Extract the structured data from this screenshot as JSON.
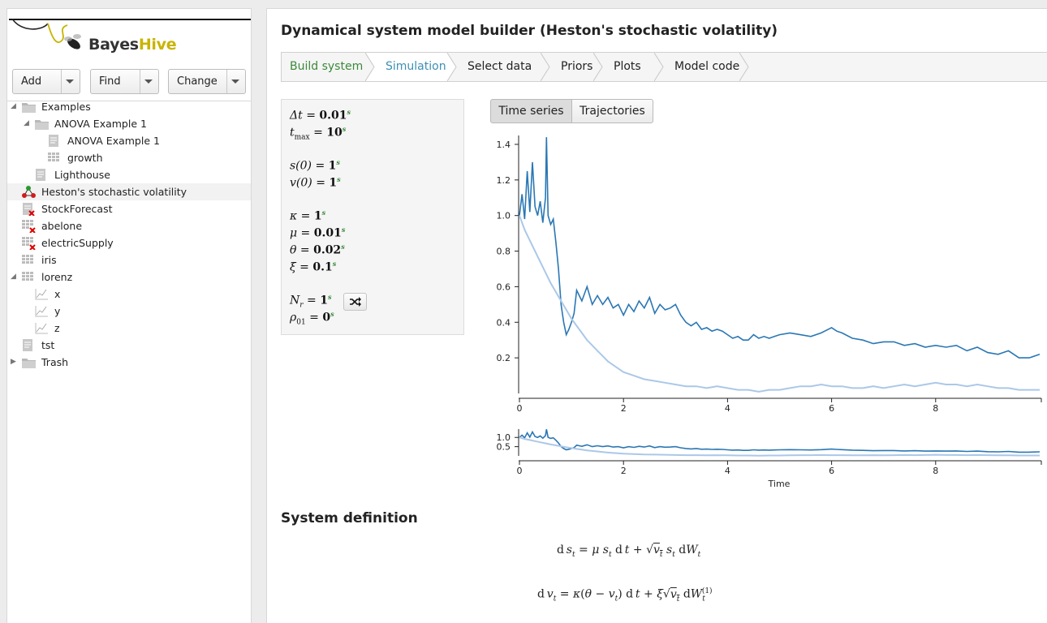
{
  "app": {
    "brand_part1": "Bayes",
    "brand_part2": "Hive"
  },
  "toolbar": {
    "add_label": "Add",
    "find_label": "Find",
    "change_label": "Change"
  },
  "tree": [
    {
      "label": "Examples",
      "icon": "folder-icon",
      "level": 0,
      "expanded": true
    },
    {
      "label": "ANOVA Example 1",
      "icon": "folder-icon",
      "level": 1,
      "expanded": true
    },
    {
      "label": "ANOVA Example 1",
      "icon": "document-icon",
      "level": 2
    },
    {
      "label": "growth",
      "icon": "table-icon",
      "level": 2
    },
    {
      "label": "Lighthouse",
      "icon": "document-icon",
      "level": 1
    },
    {
      "label": "Heston's stochastic volatility",
      "icon": "model-graph-icon",
      "level": 0,
      "selected": true
    },
    {
      "label": "StockForecast",
      "icon": "document-error-icon",
      "level": 0
    },
    {
      "label": "abelone",
      "icon": "table-error-icon",
      "level": 0
    },
    {
      "label": "electricSupply",
      "icon": "table-error-icon",
      "level": 0
    },
    {
      "label": "iris",
      "icon": "table-icon",
      "level": 0
    },
    {
      "label": "lorenz",
      "icon": "table-icon",
      "level": 0,
      "expanded": true
    },
    {
      "label": "x",
      "icon": "line-chart-icon",
      "level": 1
    },
    {
      "label": "y",
      "icon": "line-chart-icon",
      "level": 1
    },
    {
      "label": "z",
      "icon": "line-chart-icon",
      "level": 1
    },
    {
      "label": "tst",
      "icon": "document-icon",
      "level": 0
    },
    {
      "label": "Trash",
      "icon": "folder-icon",
      "level": 0,
      "expanded": false
    }
  ],
  "main": {
    "title": "Dynamical system model builder (Heston's stochastic volatility)",
    "steps": [
      "Build system",
      "Simulation",
      "Select data",
      "Priors",
      "Plots",
      "Model code"
    ],
    "active_step": 1,
    "params": {
      "dt_sym": "Δt",
      "dt_val": "0.01",
      "tmax_sym": "t",
      "tmax_sub": "max",
      "tmax_val": "10",
      "s0_sym": "s(0)",
      "s0_val": "1",
      "v0_sym": "v(0)",
      "v0_val": "1",
      "kappa_sym": "κ",
      "kappa_val": "1",
      "mu_sym": "μ",
      "mu_val": "0.01",
      "theta_sym": "θ",
      "theta_val": "0.02",
      "xi_sym": "ξ",
      "xi_val": "0.1",
      "nr_sym": "N",
      "nr_sub": "r",
      "nr_val": "1",
      "rho_sym": "ρ",
      "rho_sub": "01",
      "rho_val": "0",
      "s_marker": "s",
      "eq": " = "
    },
    "view_toggle": {
      "time_series": "Time series",
      "trajectories": "Trajectories",
      "selected": "Time series"
    },
    "sysdef": {
      "title": "System definition",
      "eq1": "d s_t = μ s_t d t + √v_t s_t d W_t",
      "eq2": "d v_t = κ(θ − v_t) d t + ξ √v_t d W_t^(1)"
    }
  },
  "chart_data": [
    {
      "type": "line",
      "name": "main-time-series",
      "xlim": [
        0,
        10
      ],
      "ylim": [
        0,
        1.45
      ],
      "x_ticks": [
        0,
        2,
        4,
        6,
        8
      ],
      "y_ticks": [
        0.2,
        0.4,
        0.6,
        0.8,
        1.0,
        1.2,
        1.4
      ],
      "x_tick_labels": [
        "0",
        "2",
        "4",
        "6",
        "8"
      ],
      "y_tick_labels": [
        "0.2",
        "0.4",
        "0.6",
        "0.8",
        "1.0",
        "1.2",
        "1.4"
      ],
      "colors": [
        "#2a77b4",
        "#abc8e8"
      ],
      "series": [
        {
          "x": [
            0,
            0.05,
            0.1,
            0.15,
            0.2,
            0.25,
            0.3,
            0.35,
            0.4,
            0.45,
            0.5,
            0.52,
            0.55,
            0.6,
            0.65,
            0.7,
            0.75,
            0.8,
            0.85,
            0.9,
            0.95,
            1.0,
            1.05,
            1.1,
            1.15,
            1.2,
            1.3,
            1.4,
            1.5,
            1.6,
            1.7,
            1.8,
            1.9,
            2.0,
            2.1,
            2.2,
            2.3,
            2.4,
            2.5,
            2.6,
            2.7,
            2.8,
            2.9,
            3.0,
            3.1,
            3.2,
            3.3,
            3.4,
            3.5,
            3.6,
            3.7,
            3.8,
            3.9,
            4.0,
            4.1,
            4.2,
            4.3,
            4.4,
            4.5,
            4.6,
            4.7,
            4.8,
            4.9,
            5.0,
            5.2,
            5.4,
            5.6,
            5.8,
            6.0,
            6.1,
            6.2,
            6.4,
            6.6,
            6.8,
            7.0,
            7.2,
            7.4,
            7.6,
            7.8,
            8.0,
            8.2,
            8.4,
            8.6,
            8.8,
            9.0,
            9.2,
            9.4,
            9.6,
            9.8,
            10.0
          ],
          "y": [
            1.0,
            1.12,
            0.98,
            1.25,
            1.02,
            1.3,
            1.05,
            1.0,
            1.08,
            0.96,
            1.1,
            1.44,
            1.0,
            0.95,
            0.98,
            0.85,
            0.7,
            0.5,
            0.4,
            0.33,
            0.36,
            0.4,
            0.45,
            0.58,
            0.55,
            0.52,
            0.6,
            0.5,
            0.55,
            0.5,
            0.54,
            0.48,
            0.5,
            0.44,
            0.5,
            0.46,
            0.52,
            0.48,
            0.54,
            0.45,
            0.5,
            0.47,
            0.48,
            0.5,
            0.44,
            0.4,
            0.38,
            0.4,
            0.36,
            0.37,
            0.35,
            0.36,
            0.35,
            0.33,
            0.31,
            0.32,
            0.3,
            0.3,
            0.33,
            0.31,
            0.32,
            0.31,
            0.32,
            0.33,
            0.34,
            0.33,
            0.32,
            0.34,
            0.37,
            0.35,
            0.34,
            0.31,
            0.3,
            0.28,
            0.29,
            0.29,
            0.27,
            0.28,
            0.26,
            0.27,
            0.26,
            0.27,
            0.24,
            0.26,
            0.23,
            0.22,
            0.24,
            0.2,
            0.2,
            0.22
          ]
        },
        {
          "x": [
            0,
            0.1,
            0.2,
            0.3,
            0.4,
            0.5,
            0.6,
            0.7,
            0.8,
            0.9,
            1.0,
            1.1,
            1.2,
            1.3,
            1.4,
            1.5,
            1.6,
            1.7,
            1.8,
            1.9,
            2.0,
            2.2,
            2.4,
            2.6,
            2.8,
            3.0,
            3.2,
            3.4,
            3.6,
            3.8,
            4.0,
            4.2,
            4.4,
            4.6,
            4.8,
            5.0,
            5.2,
            5.4,
            5.6,
            5.8,
            6.0,
            6.2,
            6.4,
            6.6,
            6.8,
            7.0,
            7.2,
            7.4,
            7.6,
            7.8,
            8.0,
            8.2,
            8.4,
            8.6,
            8.8,
            9.0,
            9.2,
            9.4,
            9.6,
            9.8,
            10.0
          ],
          "y": [
            1.0,
            0.92,
            0.86,
            0.8,
            0.74,
            0.68,
            0.62,
            0.57,
            0.52,
            0.47,
            0.42,
            0.38,
            0.34,
            0.3,
            0.27,
            0.24,
            0.21,
            0.18,
            0.16,
            0.14,
            0.12,
            0.1,
            0.08,
            0.07,
            0.06,
            0.05,
            0.04,
            0.04,
            0.03,
            0.04,
            0.03,
            0.02,
            0.02,
            0.01,
            0.02,
            0.02,
            0.03,
            0.04,
            0.04,
            0.05,
            0.04,
            0.04,
            0.03,
            0.03,
            0.04,
            0.03,
            0.04,
            0.05,
            0.04,
            0.05,
            0.06,
            0.05,
            0.05,
            0.04,
            0.05,
            0.04,
            0.03,
            0.03,
            0.02,
            0.02,
            0.02
          ]
        }
      ]
    },
    {
      "type": "line",
      "name": "overview-time-series",
      "xlabel": "Time",
      "xlim": [
        0,
        10
      ],
      "ylim": [
        0,
        1.45
      ],
      "x_ticks": [
        0,
        2,
        4,
        6,
        8
      ],
      "y_ticks": [
        0.5,
        1.0
      ],
      "x_tick_labels": [
        "0",
        "2",
        "4",
        "6",
        "8"
      ],
      "y_tick_labels": [
        "0.5",
        "1.0"
      ]
    }
  ]
}
